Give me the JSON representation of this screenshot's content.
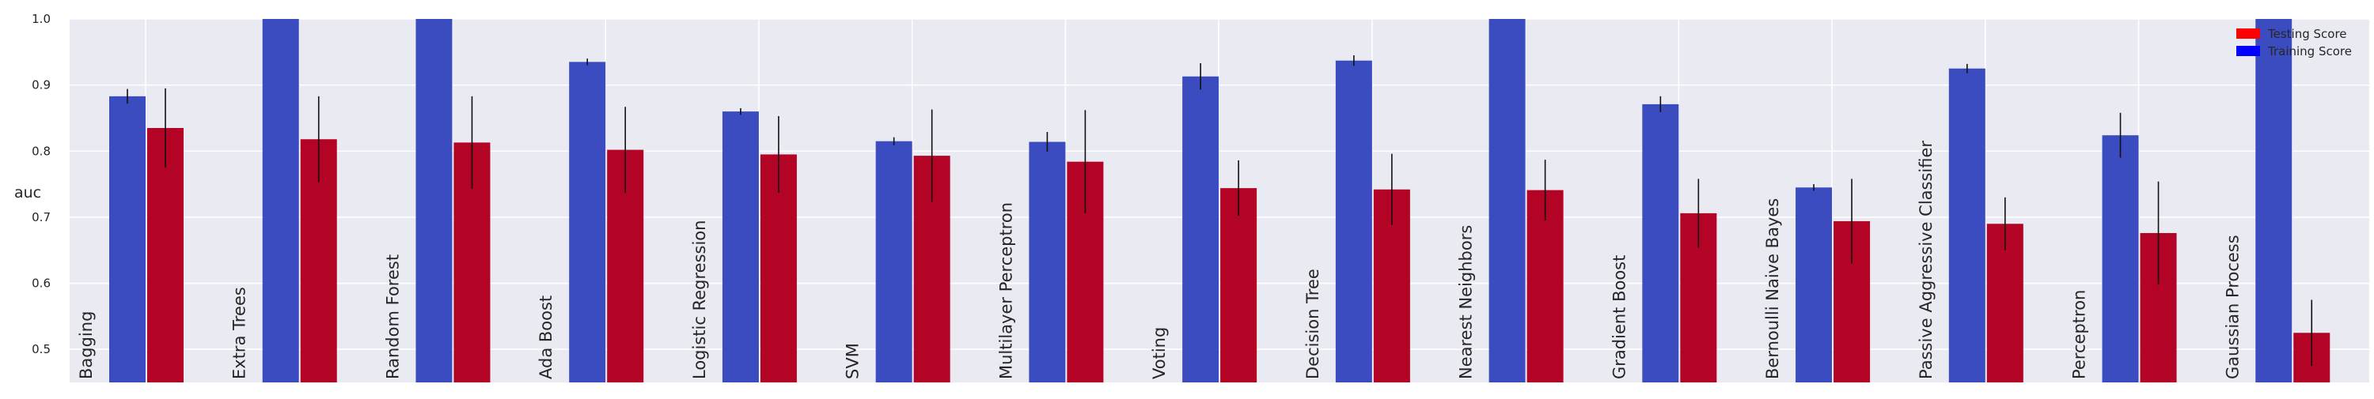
{
  "chart_data": {
    "type": "bar",
    "title": "",
    "xlabel": "",
    "ylabel": "auc",
    "ylim": [
      0.45,
      1.0
    ],
    "yticks": [
      "0.5",
      "0.6",
      "0.7",
      "0.8",
      "0.9",
      "1.0"
    ],
    "grid": true,
    "legend_position": "top-right",
    "categories": [
      "Bagging",
      "Extra Trees",
      "Random Forest",
      "Ada Boost",
      "Logistic Regression",
      "SVM",
      "Multilayer Perceptron",
      "Voting",
      "Decision Tree",
      "Nearest Neighbors",
      "Gradient Boost",
      "Bernoulli Naive Bayes",
      "Passive Aggressive Classifier",
      "Perceptron",
      "Gaussian Process"
    ],
    "series": [
      {
        "name": "Training Score",
        "color": "#3b4cc0",
        "values": [
          0.883,
          1.0,
          1.0,
          0.935,
          0.86,
          0.815,
          0.814,
          0.913,
          0.937,
          1.0,
          0.871,
          0.745,
          0.925,
          0.824,
          1.0
        ],
        "errors": [
          0.011,
          0.0,
          0.0,
          0.005,
          0.005,
          0.006,
          0.015,
          0.02,
          0.008,
          0.0,
          0.012,
          0.005,
          0.007,
          0.034,
          0.0
        ]
      },
      {
        "name": "Testing Score",
        "color": "#b40426",
        "values": [
          0.835,
          0.818,
          0.813,
          0.802,
          0.795,
          0.793,
          0.784,
          0.744,
          0.742,
          0.741,
          0.706,
          0.694,
          0.69,
          0.676,
          0.525
        ],
        "errors": [
          0.06,
          0.065,
          0.07,
          0.065,
          0.058,
          0.07,
          0.078,
          0.042,
          0.054,
          0.046,
          0.052,
          0.064,
          0.04,
          0.078,
          0.05
        ]
      }
    ]
  }
}
